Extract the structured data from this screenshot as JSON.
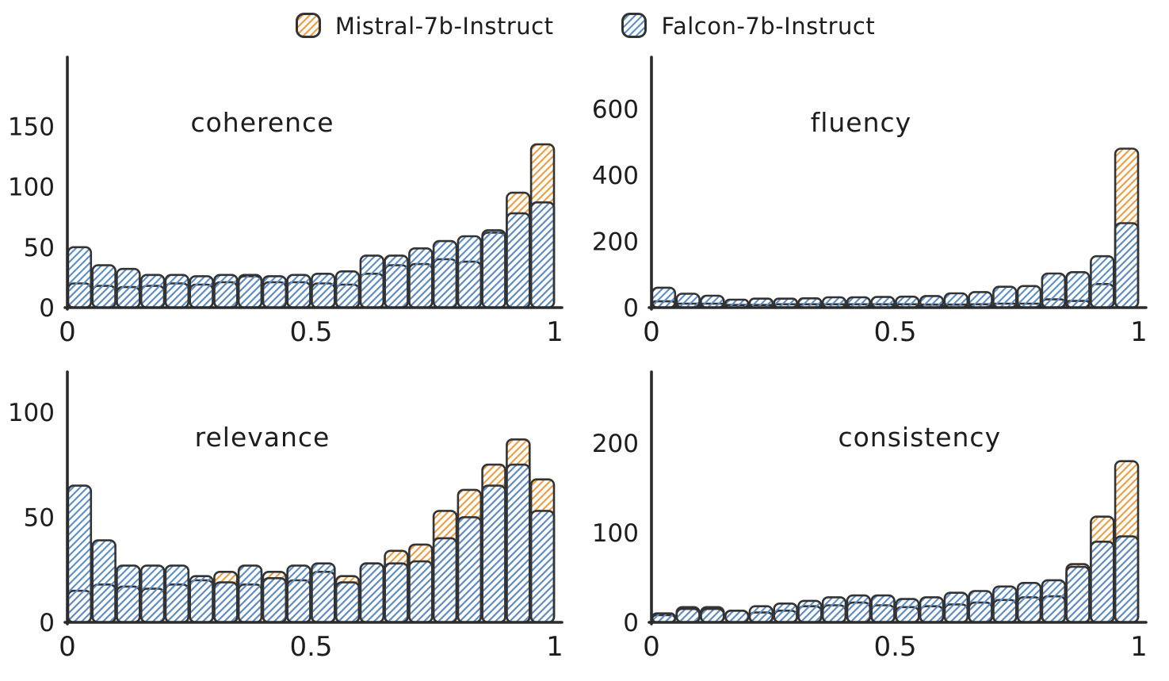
{
  "legend": {
    "items": [
      {
        "id": "mistral",
        "label": "Mistral-7b-Instruct"
      },
      {
        "id": "falcon",
        "label": "Falcon-7b-Instruct"
      }
    ]
  },
  "colors": {
    "mistral_hatch": "#f09c40",
    "falcon_hatch": "#5b8fcb",
    "bar_outline": "#333333",
    "axis": "#2b2b2b",
    "text": "#1d1d1d",
    "background": "#ffffff"
  },
  "chart_data": [
    {
      "type": "bar",
      "title": "coherence",
      "title_x_frac": 0.4,
      "bins": {
        "start": 0,
        "end": 1,
        "count": 20
      },
      "x_ticks": [
        {
          "value": 0,
          "label": "0"
        },
        {
          "value": 0.5,
          "label": "0.5"
        },
        {
          "value": 1,
          "label": "1"
        }
      ],
      "y_ticks": [
        0,
        50,
        100,
        150
      ],
      "ylim": [
        0,
        200
      ],
      "grid": false,
      "series": [
        {
          "name": "Mistral-7b-Instruct",
          "key": "mistral",
          "values": [
            20,
            18,
            17,
            18,
            20,
            19,
            21,
            26,
            21,
            21,
            20,
            19,
            28,
            35,
            36,
            40,
            38,
            62,
            95,
            135
          ]
        },
        {
          "name": "Falcon-7b-Instruct",
          "key": "falcon",
          "values": [
            50,
            35,
            32,
            27,
            27,
            26,
            27,
            27,
            26,
            27,
            28,
            30,
            43,
            43,
            49,
            55,
            59,
            64,
            78,
            87
          ]
        }
      ]
    },
    {
      "type": "bar",
      "title": "fluency",
      "title_x_frac": 0.43,
      "bins": {
        "start": 0,
        "end": 1,
        "count": 20
      },
      "x_ticks": [
        {
          "value": 0,
          "label": "0"
        },
        {
          "value": 0.5,
          "label": "0.5"
        },
        {
          "value": 1,
          "label": "1"
        }
      ],
      "y_ticks": [
        0,
        200,
        400,
        600
      ],
      "ylim": [
        0,
        730
      ],
      "grid": false,
      "series": [
        {
          "name": "Mistral-7b-Instruct",
          "key": "mistral",
          "values": [
            19,
            12,
            12,
            8,
            8,
            10,
            10,
            10,
            10,
            10,
            10,
            9,
            9,
            10,
            12,
            12,
            25,
            20,
            71,
            480
          ]
        },
        {
          "name": "Falcon-7b-Instruct",
          "key": "falcon",
          "values": [
            60,
            42,
            36,
            24,
            27,
            27,
            28,
            31,
            31,
            32,
            33,
            35,
            43,
            47,
            63,
            65,
            103,
            107,
            155,
            255
          ]
        }
      ]
    },
    {
      "type": "bar",
      "title": "relevance",
      "title_x_frac": 0.4,
      "bins": {
        "start": 0,
        "end": 1,
        "count": 20
      },
      "x_ticks": [
        {
          "value": 0,
          "label": "0"
        },
        {
          "value": 0.5,
          "label": "0.5"
        },
        {
          "value": 1,
          "label": "1"
        }
      ],
      "y_ticks": [
        0,
        50,
        100
      ],
      "ylim": [
        0,
        115
      ],
      "grid": false,
      "series": [
        {
          "name": "Mistral-7b-Instruct",
          "key": "mistral",
          "values": [
            15,
            18,
            17,
            16,
            18,
            20,
            24,
            18,
            24,
            20,
            24,
            22,
            28,
            34,
            37,
            53,
            63,
            75,
            87,
            68
          ]
        },
        {
          "name": "Falcon-7b-Instruct",
          "key": "falcon",
          "values": [
            65,
            39,
            27,
            27,
            27,
            22,
            19,
            27,
            21,
            27,
            28,
            19,
            28,
            28,
            29,
            40,
            50,
            65,
            75,
            53
          ]
        }
      ]
    },
    {
      "type": "bar",
      "title": "consistency",
      "title_x_frac": 0.55,
      "bins": {
        "start": 0,
        "end": 1,
        "count": 20
      },
      "x_ticks": [
        {
          "value": 0,
          "label": "0"
        },
        {
          "value": 0.5,
          "label": "0.5"
        },
        {
          "value": 1,
          "label": "1"
        }
      ],
      "y_ticks": [
        0,
        100,
        200
      ],
      "ylim": [
        0,
        270
      ],
      "grid": false,
      "series": [
        {
          "name": "Mistral-7b-Instruct",
          "key": "mistral",
          "values": [
            8,
            17,
            17,
            13,
            11,
            13,
            18,
            19,
            22,
            19,
            17,
            18,
            20,
            22,
            25,
            28,
            29,
            65,
            118,
            180
          ]
        },
        {
          "name": "Falcon-7b-Instruct",
          "key": "falcon",
          "values": [
            10,
            15,
            15,
            13,
            18,
            21,
            24,
            28,
            30,
            30,
            26,
            28,
            33,
            35,
            40,
            44,
            47,
            62,
            90,
            96
          ]
        }
      ]
    }
  ]
}
